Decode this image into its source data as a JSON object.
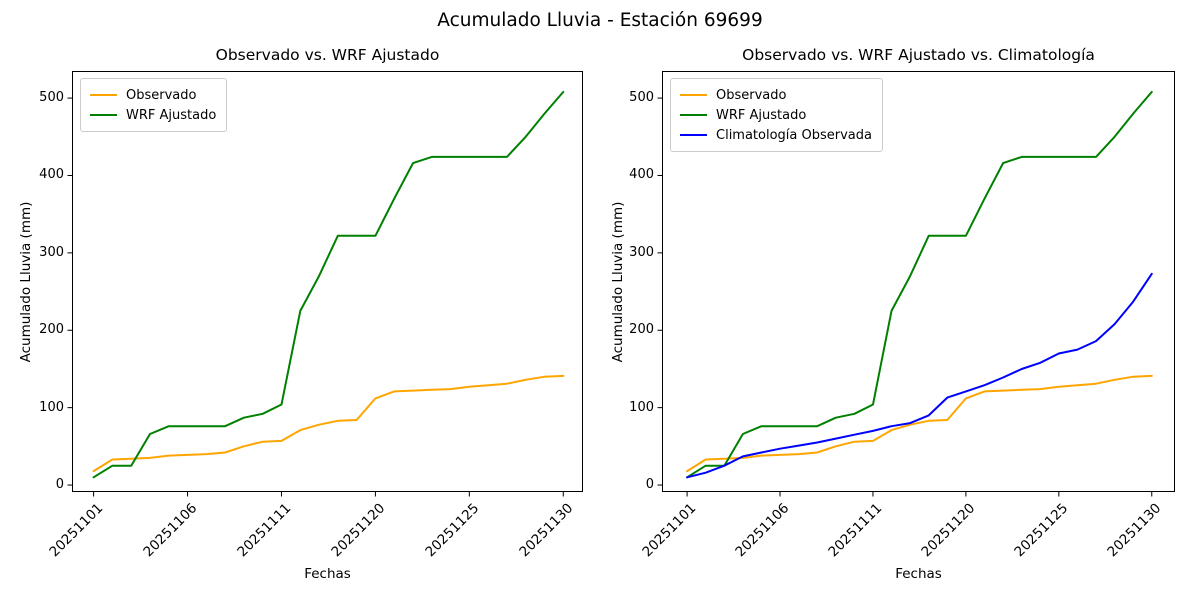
{
  "figure": {
    "title": "Acumulado Lluvia - Estación 69699"
  },
  "chart_data": [
    {
      "type": "line",
      "title": "Observado vs. WRF Ajustado",
      "xlabel": "Fechas",
      "ylabel": "Acumulado Lluvia (mm)",
      "legend_position": "upper left",
      "grid": false,
      "n_points": 26,
      "x_tick_indices": [
        0,
        5,
        10,
        15,
        20,
        25
      ],
      "x_tick_labels": [
        "20251101",
        "20251106",
        "20251111",
        "20251120",
        "20251125",
        "20251130"
      ],
      "y_tick_values": [
        0,
        100,
        200,
        300,
        400,
        500
      ],
      "y_tick_labels": [
        "0",
        "100",
        "200",
        "300",
        "400",
        "500"
      ],
      "xlim": [
        -1.15,
        26.05
      ],
      "ylim": [
        -9,
        535
      ],
      "series": [
        {
          "name": "Observado",
          "color": "#FFA500",
          "values": [
            18,
            33,
            34,
            35,
            38,
            39,
            40,
            42,
            50,
            56,
            57,
            71,
            78,
            83,
            84,
            112,
            121,
            122,
            123,
            124,
            127,
            129,
            131,
            136,
            140,
            141
          ]
        },
        {
          "name": "WRF Ajustado",
          "color": "#008000",
          "values": [
            10,
            25,
            25,
            66,
            76,
            76,
            76,
            76,
            87,
            92,
            104,
            225,
            270,
            322,
            322,
            322,
            370,
            416,
            424,
            424,
            424,
            424,
            424,
            450,
            480,
            508
          ]
        }
      ]
    },
    {
      "type": "line",
      "title": "Observado vs. WRF Ajustado vs. Climatología",
      "xlabel": "Fechas",
      "ylabel": "Acumulado Lluvia (mm)",
      "legend_position": "upper left",
      "grid": false,
      "n_points": 26,
      "x_tick_indices": [
        0,
        5,
        10,
        15,
        20,
        25
      ],
      "x_tick_labels": [
        "20251101",
        "20251106",
        "20251111",
        "20251120",
        "20251125",
        "20251130"
      ],
      "y_tick_values": [
        0,
        100,
        200,
        300,
        400,
        500
      ],
      "y_tick_labels": [
        "0",
        "100",
        "200",
        "300",
        "400",
        "500"
      ],
      "xlim": [
        -1.35,
        26.25
      ],
      "ylim": [
        -9,
        535
      ],
      "series": [
        {
          "name": "Observado",
          "color": "#FFA500",
          "values": [
            18,
            33,
            34,
            35,
            38,
            39,
            40,
            42,
            50,
            56,
            57,
            71,
            78,
            83,
            84,
            112,
            121,
            122,
            123,
            124,
            127,
            129,
            131,
            136,
            140,
            141
          ]
        },
        {
          "name": "WRF Ajustado",
          "color": "#008000",
          "values": [
            10,
            25,
            25,
            66,
            76,
            76,
            76,
            76,
            87,
            92,
            104,
            225,
            270,
            322,
            322,
            322,
            370,
            416,
            424,
            424,
            424,
            424,
            424,
            450,
            480,
            508
          ]
        },
        {
          "name": "Climatología Observada",
          "color": "#0000FF",
          "values": [
            10,
            16,
            25,
            37,
            42,
            47,
            51,
            55,
            60,
            65,
            70,
            76,
            80,
            90,
            113,
            121,
            129,
            139,
            150,
            158,
            170,
            175,
            186,
            208,
            237,
            273
          ]
        }
      ]
    }
  ]
}
